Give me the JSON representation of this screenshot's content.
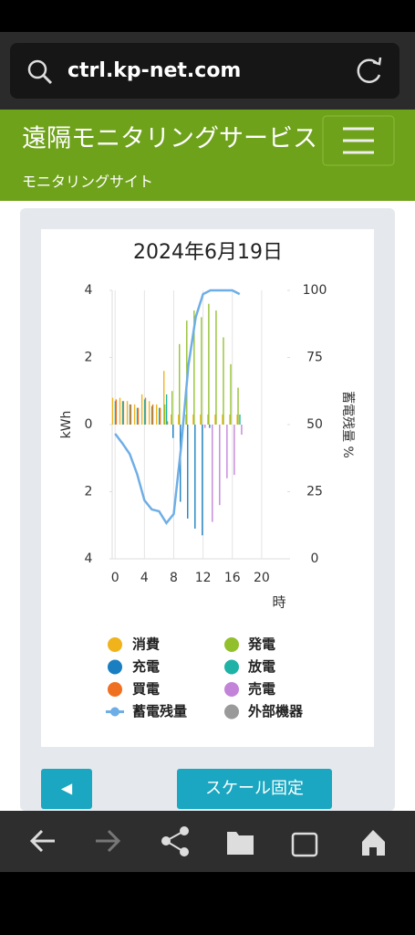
{
  "browser": {
    "url": "ctrl.kp-net.com"
  },
  "header": {
    "title": "遠隔モニタリングサービス",
    "subtitle": "モニタリングサイト"
  },
  "chart_data": {
    "type": "bar",
    "title": "2024年6月19日",
    "x_label": "時",
    "y_label": "kWh",
    "y2_label": "蓄電残量 %",
    "x": [
      0,
      1,
      2,
      3,
      4,
      5,
      6,
      7,
      8,
      9,
      10,
      11,
      12,
      13,
      14,
      15,
      16,
      17
    ],
    "xlim": [
      -0.4,
      23.5
    ],
    "xticks": [
      0,
      4,
      8,
      12,
      16,
      20
    ],
    "ylim": [
      -4,
      4
    ],
    "yticks": [
      4,
      2,
      0,
      {
        "value": -2,
        "label": "2"
      },
      {
        "value": -4,
        "label": "4"
      }
    ],
    "y2lim": [
      0,
      100
    ],
    "y2ticks": [
      100,
      75,
      50,
      25,
      0
    ],
    "grid": true,
    "series": [
      {
        "name": "消費",
        "color": "#f0b31c",
        "values": [
          0.8,
          0.8,
          0.7,
          0.6,
          0.9,
          0.7,
          0.6,
          1.6,
          0.3,
          0.3,
          0.3,
          0.3,
          0.3,
          0.3,
          0.3,
          0.3,
          0.3,
          0.3
        ]
      },
      {
        "name": "発電",
        "color": "#92c02c",
        "values": [
          0,
          0,
          0,
          0,
          0,
          0,
          0,
          0.6,
          1.0,
          2.4,
          3.1,
          3.4,
          3.2,
          3.6,
          3.4,
          2.6,
          1.8,
          1.1
        ]
      },
      {
        "name": "充電",
        "color": "#1a7fc1",
        "values": [
          0,
          0,
          0,
          0,
          0,
          0,
          0,
          0,
          -0.4,
          -2.3,
          -2.8,
          -3.1,
          -3.3,
          -0.1,
          0,
          0,
          0,
          0
        ]
      },
      {
        "name": "放電",
        "color": "#1fb2a6",
        "values": [
          0.7,
          0.7,
          0.6,
          0.5,
          0.75,
          0.55,
          0.5,
          0.9,
          0,
          0,
          0,
          0,
          0,
          0,
          0,
          0,
          0,
          0.3
        ]
      },
      {
        "name": "買電",
        "color": "#f07022",
        "values": [
          0.75,
          0.7,
          0.6,
          0.5,
          0.8,
          0.6,
          0.5,
          0.1,
          0,
          0,
          0,
          0,
          0,
          0,
          0,
          0,
          0,
          0
        ]
      },
      {
        "name": "売電",
        "color": "#c283d9",
        "values": [
          0,
          0,
          0,
          0,
          0,
          0,
          0,
          0,
          0,
          0,
          0,
          0,
          -0.1,
          -2.9,
          -2.4,
          -1.6,
          -1.5,
          -0.3
        ]
      },
      {
        "name": "蓄電残量",
        "color": "#6eaee6",
        "axis": "y2",
        "values": [
          46.6,
          43,
          39,
          31.6,
          21.8,
          18.4,
          17.7,
          13.3,
          16.7,
          41.5,
          72,
          90,
          98.6,
          100,
          100,
          100,
          100,
          98.6
        ]
      },
      {
        "name": "外部機器",
        "color": "#9a9a9a",
        "values": [
          0,
          0,
          0,
          0,
          0,
          0,
          0,
          0,
          0,
          0,
          0,
          0,
          0,
          0,
          0,
          0,
          0,
          0
        ]
      }
    ]
  },
  "buttons": {
    "prev": "◀",
    "scale": "スケール固定"
  }
}
